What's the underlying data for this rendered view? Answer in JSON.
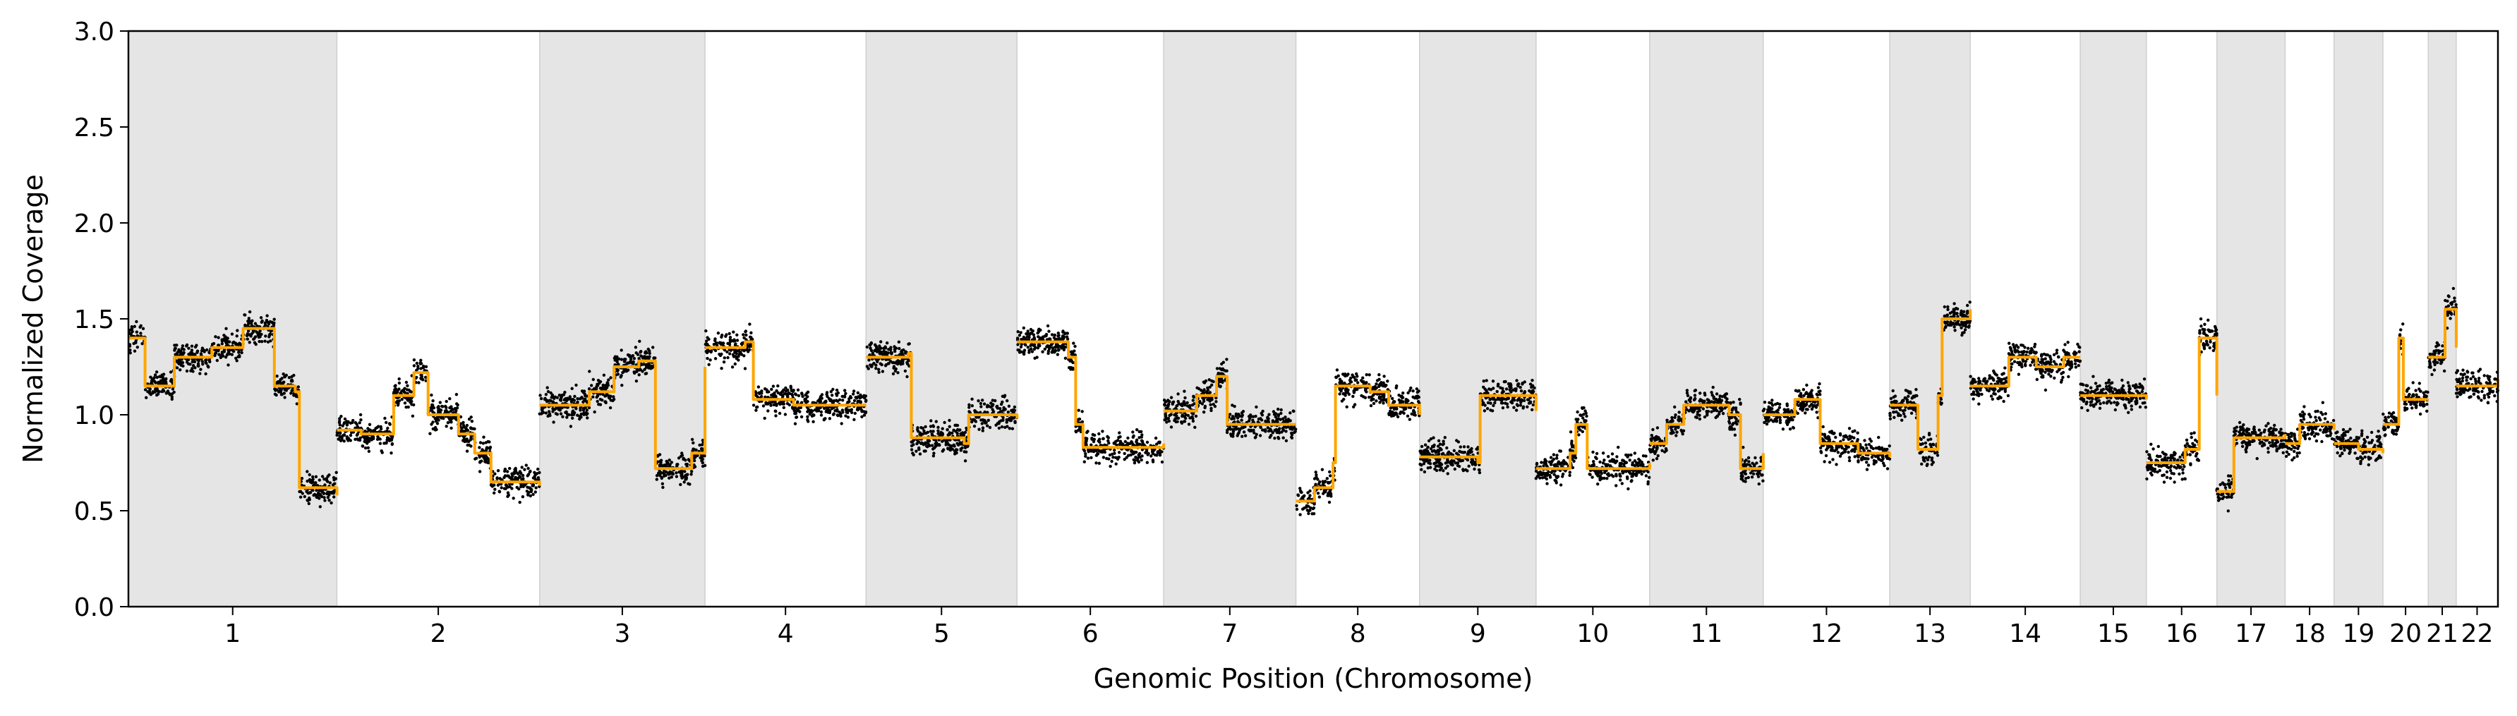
{
  "chart_data": {
    "type": "scatter",
    "title": "",
    "xlabel": "Genomic Position (Chromosome)",
    "ylabel": "Normalized Coverage",
    "ylim": [
      0,
      3.0
    ],
    "yticks": [
      0.0,
      0.5,
      1.0,
      1.5,
      2.0,
      2.5,
      3.0
    ],
    "ytick_labels": [
      "0.0",
      "0.5",
      "1.0",
      "1.5",
      "2.0",
      "2.5",
      "3.0"
    ],
    "x_axis": "chromosome",
    "colors": {
      "points": "#000000",
      "segments": "#ffa500",
      "shade": "#e5e5e5"
    },
    "grid": false,
    "legend": "none",
    "chromosomes": [
      {
        "name": "1",
        "shaded": true,
        "levels": [
          [
            0.0,
            1.4
          ],
          [
            0.08,
            1.15
          ],
          [
            0.22,
            1.3
          ],
          [
            0.4,
            1.35
          ],
          [
            0.55,
            1.45
          ],
          [
            0.7,
            1.15
          ],
          [
            0.8,
            1.12
          ],
          [
            0.82,
            0.62
          ],
          [
            1.0,
            0.58
          ]
        ]
      },
      {
        "name": "2",
        "shaded": false,
        "levels": [
          [
            0.0,
            0.92
          ],
          [
            0.12,
            0.9
          ],
          [
            0.28,
            1.1
          ],
          [
            0.38,
            1.22
          ],
          [
            0.45,
            1.0
          ],
          [
            0.6,
            0.9
          ],
          [
            0.68,
            0.8
          ],
          [
            0.76,
            0.65
          ],
          [
            1.0,
            0.63
          ]
        ]
      },
      {
        "name": "3",
        "shaded": true,
        "levels": [
          [
            0.0,
            1.05
          ],
          [
            0.3,
            1.12
          ],
          [
            0.45,
            1.25
          ],
          [
            0.6,
            1.28
          ],
          [
            0.7,
            0.72
          ],
          [
            0.92,
            0.8
          ],
          [
            1.0,
            1.25
          ]
        ]
      },
      {
        "name": "4",
        "shaded": false,
        "levels": [
          [
            0.0,
            1.35
          ],
          [
            0.25,
            1.38
          ],
          [
            0.3,
            1.08
          ],
          [
            0.55,
            1.05
          ],
          [
            1.0,
            1.05
          ]
        ]
      },
      {
        "name": "5",
        "shaded": true,
        "levels": [
          [
            0.0,
            1.3
          ],
          [
            0.28,
            1.32
          ],
          [
            0.3,
            0.88
          ],
          [
            0.65,
            0.85
          ],
          [
            0.68,
            1.0
          ],
          [
            1.0,
            0.98
          ]
        ]
      },
      {
        "name": "6",
        "shaded": false,
        "levels": [
          [
            0.0,
            1.38
          ],
          [
            0.35,
            1.3
          ],
          [
            0.4,
            0.95
          ],
          [
            0.45,
            0.83
          ],
          [
            1.0,
            0.85
          ]
        ]
      },
      {
        "name": "7",
        "shaded": true,
        "levels": [
          [
            0.0,
            1.02
          ],
          [
            0.25,
            1.1
          ],
          [
            0.4,
            1.2
          ],
          [
            0.48,
            0.95
          ],
          [
            1.0,
            0.95
          ]
        ]
      },
      {
        "name": "8",
        "shaded": false,
        "levels": [
          [
            0.0,
            0.55
          ],
          [
            0.15,
            0.62
          ],
          [
            0.3,
            0.75
          ],
          [
            0.32,
            1.15
          ],
          [
            0.6,
            1.12
          ],
          [
            0.75,
            1.05
          ],
          [
            1.0,
            1.0
          ]
        ]
      },
      {
        "name": "9",
        "shaded": true,
        "levels": [
          [
            0.0,
            0.78
          ],
          [
            0.5,
            0.75
          ],
          [
            0.52,
            1.1
          ],
          [
            1.0,
            1.02
          ]
        ]
      },
      {
        "name": "10",
        "shaded": false,
        "levels": [
          [
            0.0,
            0.72
          ],
          [
            0.3,
            0.8
          ],
          [
            0.35,
            0.95
          ],
          [
            0.45,
            0.72
          ],
          [
            1.0,
            0.75
          ]
        ]
      },
      {
        "name": "11",
        "shaded": true,
        "levels": [
          [
            0.0,
            0.85
          ],
          [
            0.15,
            0.95
          ],
          [
            0.3,
            1.05
          ],
          [
            0.7,
            1.0
          ],
          [
            0.8,
            0.72
          ],
          [
            1.0,
            0.8
          ]
        ]
      },
      {
        "name": "12",
        "shaded": false,
        "levels": [
          [
            0.0,
            1.0
          ],
          [
            0.25,
            1.08
          ],
          [
            0.45,
            0.85
          ],
          [
            0.75,
            0.8
          ],
          [
            1.0,
            0.78
          ]
        ]
      },
      {
        "name": "13",
        "shaded": true,
        "levels": [
          [
            0.0,
            1.05
          ],
          [
            0.35,
            0.82
          ],
          [
            0.6,
            1.1
          ],
          [
            0.65,
            1.5
          ],
          [
            1.0,
            1.55
          ]
        ]
      },
      {
        "name": "14",
        "shaded": false,
        "levels": [
          [
            0.0,
            1.15
          ],
          [
            0.35,
            1.3
          ],
          [
            0.6,
            1.25
          ],
          [
            0.85,
            1.3
          ],
          [
            1.0,
            1.3
          ]
        ]
      },
      {
        "name": "15",
        "shaded": true,
        "levels": [
          [
            0.0,
            1.1
          ],
          [
            1.0,
            1.08
          ]
        ]
      },
      {
        "name": "16",
        "shaded": false,
        "levels": [
          [
            0.0,
            0.75
          ],
          [
            0.55,
            0.82
          ],
          [
            0.75,
            1.4
          ],
          [
            1.0,
            1.1
          ]
        ]
      },
      {
        "name": "17",
        "shaded": true,
        "levels": [
          [
            0.0,
            0.6
          ],
          [
            0.25,
            0.88
          ],
          [
            1.0,
            0.9
          ]
        ]
      },
      {
        "name": "18",
        "shaded": false,
        "levels": [
          [
            0.0,
            0.85
          ],
          [
            0.3,
            0.95
          ],
          [
            1.0,
            0.92
          ]
        ]
      },
      {
        "name": "19",
        "shaded": true,
        "levels": [
          [
            0.0,
            0.85
          ],
          [
            0.5,
            0.82
          ],
          [
            1.0,
            0.8
          ]
        ]
      },
      {
        "name": "20",
        "shaded": false,
        "levels": [
          [
            0.0,
            0.95
          ],
          [
            0.35,
            1.4
          ],
          [
            0.45,
            1.08
          ],
          [
            1.0,
            1.08
          ]
        ]
      },
      {
        "name": "21",
        "shaded": true,
        "levels": [
          [
            0.0,
            1.3
          ],
          [
            0.6,
            1.55
          ],
          [
            1.0,
            1.35
          ]
        ]
      },
      {
        "name": "22",
        "shaded": false,
        "levels": [
          [
            0.0,
            1.15
          ],
          [
            1.0,
            1.18
          ]
        ]
      }
    ]
  }
}
